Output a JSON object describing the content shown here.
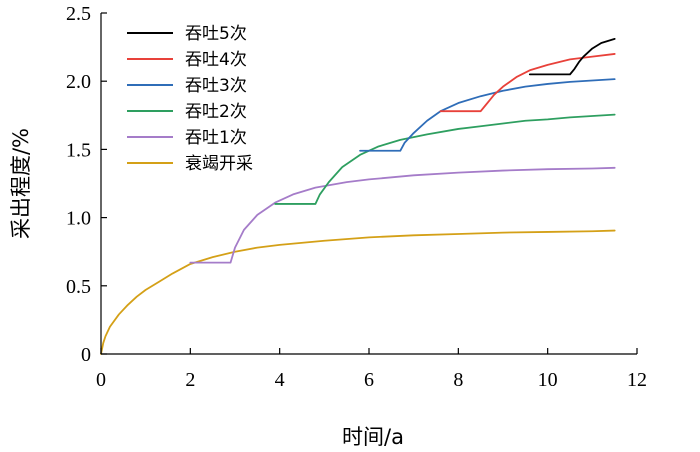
{
  "chart_data": {
    "type": "line",
    "xlabel": "时间/a",
    "ylabel": "采出程度/%",
    "xlim": [
      0,
      12
    ],
    "ylim": [
      0,
      2.5
    ],
    "xticks": [
      "0",
      "2",
      "4",
      "6",
      "8",
      "10",
      "12"
    ],
    "yticks": [
      "0",
      "0.5",
      "1.0",
      "1.5",
      "2.0",
      "2.5"
    ],
    "grid": false,
    "legend_position": "top-left",
    "series": [
      {
        "name": "吞吐5次",
        "color": "#000000",
        "x": [
          9.6,
          10.0,
          10.5,
          10.6,
          10.7,
          10.8,
          11.0,
          11.2,
          11.5
        ],
        "y": [
          2.05,
          2.05,
          2.05,
          2.09,
          2.14,
          2.18,
          2.24,
          2.28,
          2.31
        ]
      },
      {
        "name": "吞吐4次",
        "color": "#e8413a",
        "x": [
          7.6,
          8.0,
          8.5,
          8.6,
          8.7,
          8.8,
          9.0,
          9.3,
          9.6,
          10.0,
          10.5,
          11.0,
          11.5
        ],
        "y": [
          1.78,
          1.78,
          1.78,
          1.82,
          1.86,
          1.9,
          1.96,
          2.03,
          2.08,
          2.12,
          2.16,
          2.18,
          2.2
        ]
      },
      {
        "name": "吞吐3次",
        "color": "#2f6db8",
        "x": [
          5.8,
          6.2,
          6.7,
          6.8,
          7.0,
          7.3,
          7.6,
          8.0,
          8.5,
          9.0,
          9.5,
          10.0,
          10.5,
          11.0,
          11.5
        ],
        "y": [
          1.49,
          1.49,
          1.49,
          1.55,
          1.62,
          1.71,
          1.78,
          1.84,
          1.89,
          1.93,
          1.96,
          1.98,
          1.995,
          2.005,
          2.015
        ]
      },
      {
        "name": "吞吐2次",
        "color": "#2e9f60",
        "x": [
          3.9,
          4.3,
          4.8,
          4.9,
          5.1,
          5.4,
          5.8,
          6.2,
          6.7,
          7.3,
          8.0,
          8.5,
          9.0,
          9.5,
          10.0,
          10.5,
          11.0,
          11.5
        ],
        "y": [
          1.1,
          1.1,
          1.1,
          1.17,
          1.26,
          1.37,
          1.46,
          1.52,
          1.57,
          1.61,
          1.65,
          1.67,
          1.69,
          1.71,
          1.72,
          1.735,
          1.745,
          1.755
        ]
      },
      {
        "name": "吞吐1次",
        "color": "#a57cc9",
        "x": [
          2.0,
          2.5,
          2.9,
          3.0,
          3.2,
          3.5,
          3.9,
          4.3,
          4.8,
          5.5,
          6.0,
          7.0,
          8.0,
          9.0,
          10.0,
          11.0,
          11.5
        ],
        "y": [
          0.67,
          0.67,
          0.67,
          0.78,
          0.91,
          1.02,
          1.11,
          1.17,
          1.22,
          1.26,
          1.28,
          1.31,
          1.33,
          1.345,
          1.355,
          1.36,
          1.365
        ]
      },
      {
        "name": "衰竭开采",
        "color": "#d4a017",
        "x": [
          0,
          0.05,
          0.1,
          0.2,
          0.4,
          0.6,
          0.8,
          1.0,
          1.3,
          1.6,
          2.0,
          2.5,
          3.0,
          3.5,
          4.0,
          5.0,
          6.0,
          7.0,
          8.0,
          9.0,
          10.0,
          11.0,
          11.5
        ],
        "y": [
          0,
          0.08,
          0.13,
          0.2,
          0.29,
          0.36,
          0.42,
          0.47,
          0.53,
          0.59,
          0.66,
          0.71,
          0.75,
          0.78,
          0.8,
          0.83,
          0.855,
          0.87,
          0.88,
          0.89,
          0.895,
          0.9,
          0.905
        ]
      }
    ]
  }
}
